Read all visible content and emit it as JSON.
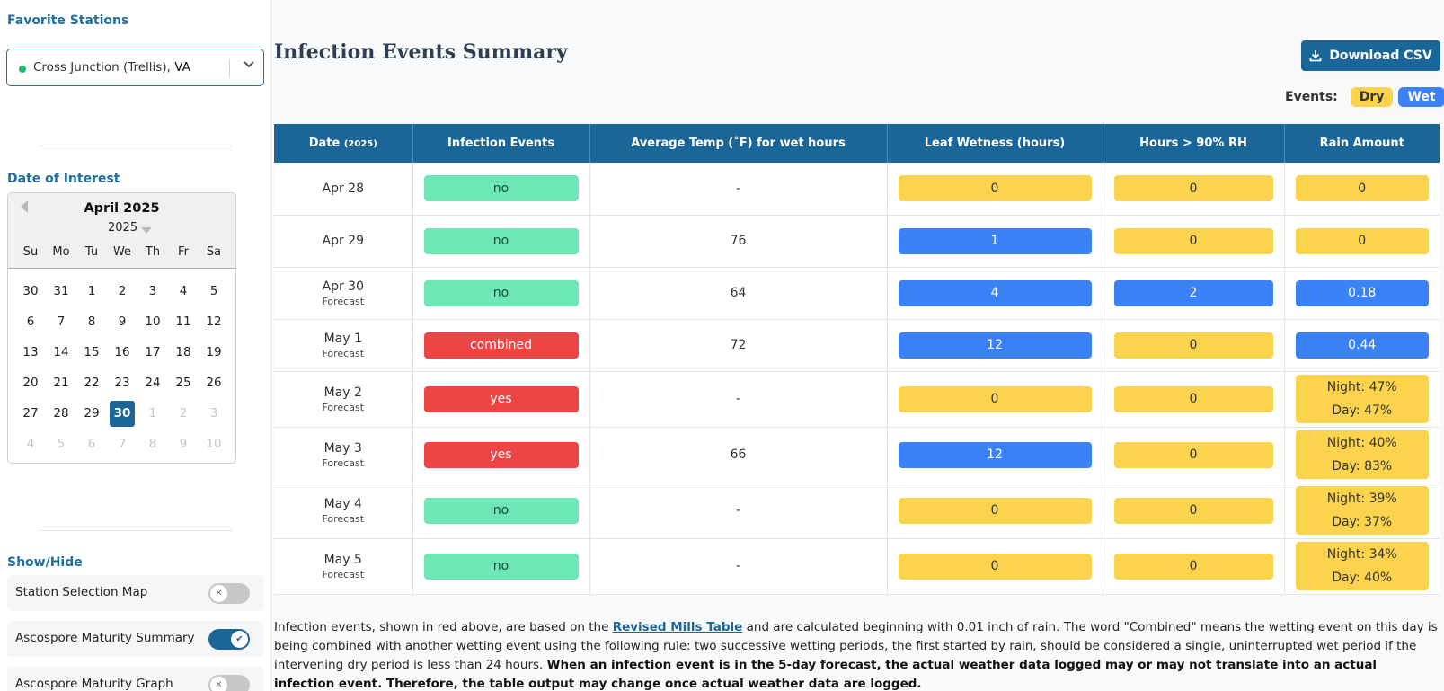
{
  "sidebar": {
    "favorite_heading": "Favorite Stations",
    "station": {
      "name": "Cross Junction (Trellis),",
      "state": "VA"
    },
    "date_heading": "Date of Interest",
    "calendar": {
      "month_label": "April 2025",
      "year": "2025",
      "weekdays": [
        "Su",
        "Mo",
        "Tu",
        "We",
        "Th",
        "Fr",
        "Sa"
      ],
      "days": [
        "30",
        "31",
        "1",
        "2",
        "3",
        "4",
        "5",
        "6",
        "7",
        "8",
        "9",
        "10",
        "11",
        "12",
        "13",
        "14",
        "15",
        "16",
        "17",
        "18",
        "19",
        "20",
        "21",
        "22",
        "23",
        "24",
        "25",
        "26",
        "27",
        "28",
        "29",
        "30",
        "1",
        "2",
        "3",
        "4",
        "5",
        "6",
        "7",
        "8",
        "9",
        "10"
      ],
      "selected_index": 31,
      "muted_from": 32
    },
    "showhide_heading": "Show/Hide",
    "toggles": [
      {
        "label": "Station Selection Map",
        "on": false
      },
      {
        "label": "Ascospore Maturity Summary",
        "on": true
      },
      {
        "label": "Ascospore Maturity Graph",
        "on": false
      }
    ]
  },
  "main": {
    "title": "Infection Events Summary",
    "download_label": "Download CSV",
    "events_label": "Events:",
    "legend_dry": "Dry",
    "legend_wet": "Wet",
    "colors": {
      "dry": "#fcd34d",
      "wet": "#3b82f6",
      "no": "#6ee7b7",
      "yes": "#ef4444",
      "header": "#1a6699"
    },
    "table": {
      "headers": {
        "date": "Date",
        "date_sub": "(2025)",
        "infection": "Infection Events",
        "avg_temp": "Average Temp (˚F) for wet hours",
        "leaf_wetness": "Leaf Wetness (hours)",
        "rh": "Hours > 90% RH",
        "rain": "Rain Amount"
      },
      "rows": [
        {
          "date": "Apr 28",
          "sub": "",
          "infection": "no",
          "temp": "-",
          "leaf": "0",
          "leaf_wet": false,
          "rh": "0",
          "rh_wet": false,
          "rain": "0",
          "rain_wet": false
        },
        {
          "date": "Apr 29",
          "sub": "",
          "infection": "no",
          "temp": "76",
          "leaf": "1",
          "leaf_wet": true,
          "rh": "0",
          "rh_wet": false,
          "rain": "0",
          "rain_wet": false
        },
        {
          "date": "Apr 30",
          "sub": "Forecast",
          "infection": "no",
          "temp": "64",
          "leaf": "4",
          "leaf_wet": true,
          "rh": "2",
          "rh_wet": true,
          "rain": "0.18",
          "rain_wet": true
        },
        {
          "date": "May 1",
          "sub": "Forecast",
          "infection": "combined",
          "temp": "72",
          "leaf": "12",
          "leaf_wet": true,
          "rh": "0",
          "rh_wet": false,
          "rain": "0.44",
          "rain_wet": true
        },
        {
          "date": "May 2",
          "sub": "Forecast",
          "infection": "yes",
          "temp": "-",
          "leaf": "0",
          "leaf_wet": false,
          "rh": "0",
          "rh_wet": false,
          "rain_night": "Night: 47%",
          "rain_day": "Day: 47%"
        },
        {
          "date": "May 3",
          "sub": "Forecast",
          "infection": "yes",
          "temp": "66",
          "leaf": "12",
          "leaf_wet": true,
          "rh": "0",
          "rh_wet": false,
          "rain_night": "Night: 40%",
          "rain_day": "Day: 83%"
        },
        {
          "date": "May 4",
          "sub": "Forecast",
          "infection": "no",
          "temp": "-",
          "leaf": "0",
          "leaf_wet": false,
          "rh": "0",
          "rh_wet": false,
          "rain_night": "Night: 39%",
          "rain_day": "Day: 37%"
        },
        {
          "date": "May 5",
          "sub": "Forecast",
          "infection": "no",
          "temp": "-",
          "leaf": "0",
          "leaf_wet": false,
          "rh": "0",
          "rh_wet": false,
          "rain_night": "Night: 34%",
          "rain_day": "Day: 40%"
        }
      ]
    },
    "footer": {
      "p1": "Infection events, shown in red above, are based on the ",
      "link": "Revised Mills Table",
      "p2": " and are calculated beginning with 0.01 inch of rain. The word \"Combined\" means the wetting event on this day is being combined with another wetting event using the following rule: two successive wetting periods, the first started by rain, should be considered a single, uninterrupted wet period if the intervening dry period is less than 24 hours. ",
      "bold": "When an infection event is in the 5-day forecast, the actual weather data logged may or may not translate into an actual infection event. Therefore, the table output may change once actual weather data are logged."
    }
  }
}
